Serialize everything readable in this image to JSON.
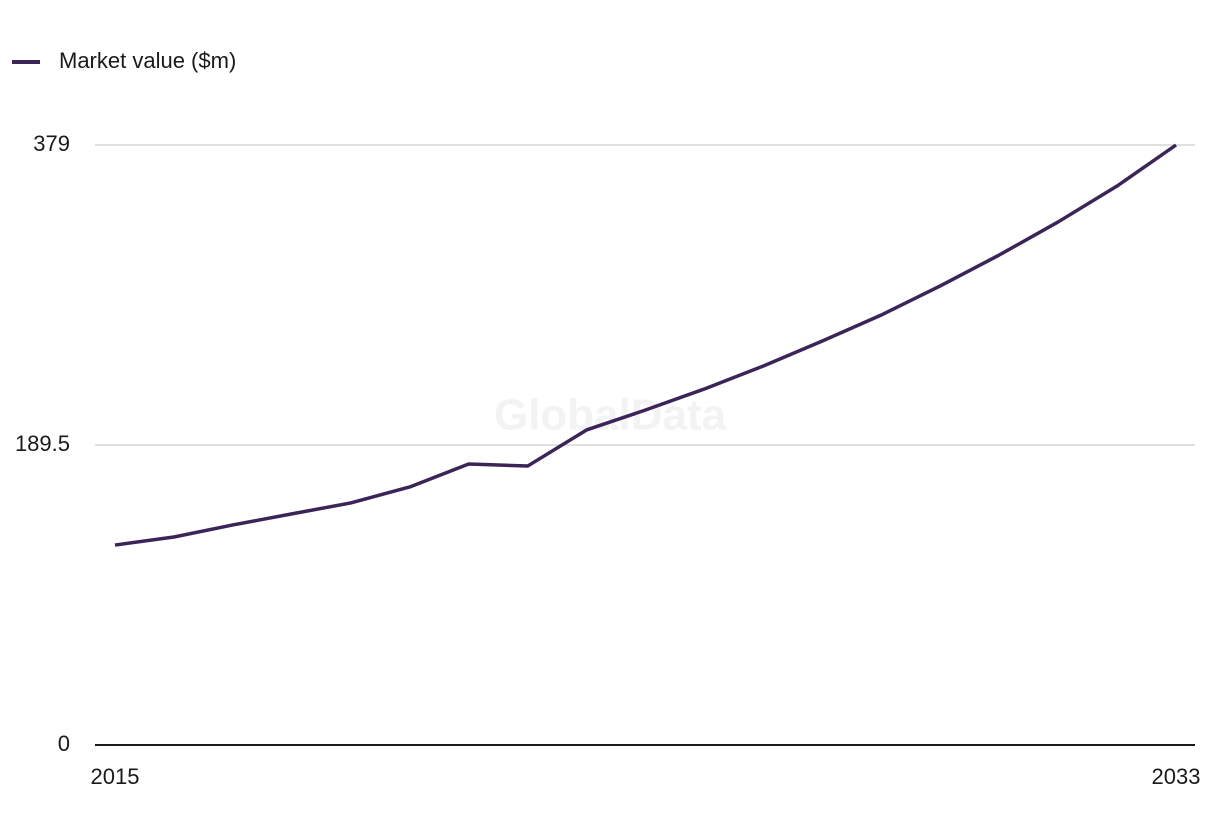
{
  "chart_data": {
    "type": "line",
    "watermark": "GlobalData",
    "x": [
      2015,
      2016,
      2017,
      2018,
      2019,
      2020,
      2021,
      2022,
      2023,
      2024,
      2025,
      2026,
      2027,
      2028,
      2029,
      2030,
      2031,
      2032,
      2033
    ],
    "series": [
      {
        "name": "Market value ($m)",
        "color": "#3b2558",
        "values": [
          126.3,
          131.4,
          139,
          146,
          152.9,
          163,
          177.5,
          176.2,
          199,
          211.6,
          224.9,
          239.4,
          255.2,
          271.6,
          290,
          309.5,
          330.4,
          353.1,
          379
        ]
      }
    ],
    "xlim": [
      2015,
      2033
    ],
    "xticks": [
      2015,
      2033
    ],
    "ylim": [
      0,
      379
    ],
    "yticks": [
      0,
      189.5,
      379
    ],
    "grid": true,
    "legend": "top-left"
  }
}
